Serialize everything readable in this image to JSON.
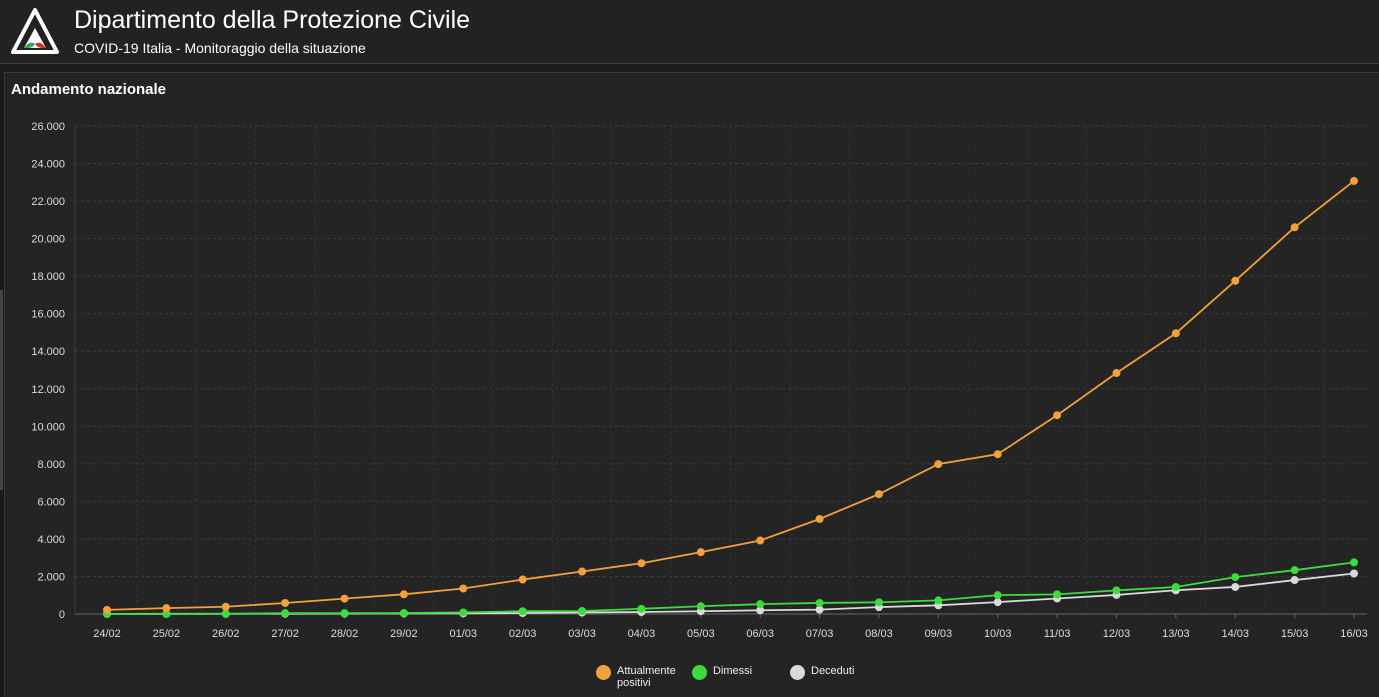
{
  "header": {
    "title": "Dipartimento della Protezione Civile",
    "subtitle": "COVID-19 Italia - Monitoraggio della situazione",
    "logo_icon": "protezione-civile-logo"
  },
  "panel": {
    "title": "Andamento nazionale"
  },
  "colors": {
    "background": "#1c1c1c",
    "panel": "#242424",
    "grid": "#3a3a3a",
    "attualmente_positivi": "#f2a03a",
    "dimessi": "#3ddc3d",
    "deceduti": "#d9d9d9"
  },
  "chart_data": {
    "type": "line",
    "title": "Andamento nazionale",
    "categories": [
      "24/02",
      "25/02",
      "26/02",
      "27/02",
      "28/02",
      "29/02",
      "01/03",
      "02/03",
      "03/03",
      "04/03",
      "05/03",
      "06/03",
      "07/03",
      "08/03",
      "09/03",
      "10/03",
      "11/03",
      "12/03",
      "13/03",
      "14/03",
      "15/03",
      "16/03"
    ],
    "ylim": [
      0,
      26000
    ],
    "yticks": [
      0,
      2000,
      4000,
      6000,
      8000,
      10000,
      12000,
      14000,
      16000,
      18000,
      20000,
      22000,
      24000,
      26000
    ],
    "ytick_labels": [
      "0",
      "2.000",
      "4.000",
      "6.000",
      "8.000",
      "10.000",
      "12.000",
      "14.000",
      "16.000",
      "18.000",
      "20.000",
      "22.000",
      "24.000",
      "26.000"
    ],
    "grid": true,
    "legend_position": "bottom-center",
    "series": [
      {
        "name": "Attualmente positivi",
        "color": "#f2a03a",
        "values": [
          221,
          311,
          385,
          588,
          821,
          1049,
          1359,
          1835,
          2263,
          2706,
          3296,
          3916,
          5061,
          6387,
          7985,
          8514,
          10590,
          12839,
          14955,
          17750,
          20603,
          23073
        ]
      },
      {
        "name": "Dimessi",
        "color": "#3ddc3d",
        "values": [
          1,
          1,
          3,
          45,
          46,
          50,
          83,
          149,
          160,
          276,
          414,
          523,
          589,
          622,
          724,
          1004,
          1045,
          1258,
          1439,
          1966,
          2335,
          2749
        ]
      },
      {
        "name": "Deceduti",
        "color": "#d9d9d9",
        "values": [
          7,
          10,
          12,
          17,
          21,
          29,
          34,
          52,
          79,
          107,
          148,
          197,
          233,
          366,
          463,
          631,
          827,
          1016,
          1266,
          1441,
          1809,
          2158
        ]
      }
    ]
  }
}
